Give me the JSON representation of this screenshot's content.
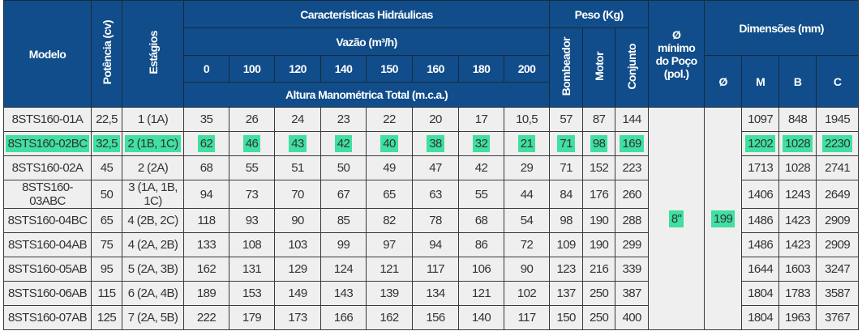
{
  "headers": {
    "modelo": "Modelo",
    "potencia": "Potência (cv)",
    "estagios": "Estágios",
    "hidraulicas": "Características Hidráulicas",
    "vazao": "Vazão (m³/h)",
    "flows": [
      "0",
      "100",
      "120",
      "140",
      "150",
      "160",
      "180",
      "200"
    ],
    "altura": "Altura Manométrica Total (m.c.a.)",
    "peso": "Peso (Kg)",
    "bombeador": "Bombeador",
    "motor": "Motor",
    "conjunto": "Conjunto",
    "poco": "Ø mínimo do Poço (pol.)",
    "dimensoes": "Dimensões (mm)",
    "dim_cols": [
      "Ø",
      "M",
      "B",
      "C"
    ]
  },
  "shared": {
    "poco_min": "8\"",
    "diametro": "199"
  },
  "highlight_color": "#3fe0a2",
  "rows": [
    {
      "modelo": "8STS160-01A",
      "potencia": "22,5",
      "estagios": "1 (1A)",
      "alturas": [
        "35",
        "26",
        "24",
        "23",
        "22",
        "20",
        "17",
        "10,5"
      ],
      "bombeador": "57",
      "motor": "87",
      "conjunto": "144",
      "M": "1097",
      "B": "848",
      "C": "1945",
      "highlight": false
    },
    {
      "modelo": "8STS160-02BC",
      "potencia": "32,5",
      "estagios": "2 (1B, 1C)",
      "alturas": [
        "62",
        "46",
        "43",
        "42",
        "40",
        "38",
        "32",
        "21"
      ],
      "bombeador": "71",
      "motor": "98",
      "conjunto": "169",
      "M": "1202",
      "B": "1028",
      "C": "2230",
      "highlight": true
    },
    {
      "modelo": "8STS160-02A",
      "potencia": "45",
      "estagios": "2 (2A)",
      "alturas": [
        "68",
        "55",
        "51",
        "50",
        "49",
        "47",
        "42",
        "29"
      ],
      "bombeador": "71",
      "motor": "152",
      "conjunto": "223",
      "M": "1713",
      "B": "1028",
      "C": "2741",
      "highlight": false
    },
    {
      "modelo": "8STS160-03ABC",
      "potencia": "50",
      "estagios": "3 (1A, 1B, 1C)",
      "alturas": [
        "94",
        "73",
        "70",
        "67",
        "65",
        "63",
        "55",
        "44"
      ],
      "bombeador": "84",
      "motor": "176",
      "conjunto": "260",
      "M": "1406",
      "B": "1243",
      "C": "2649",
      "highlight": false
    },
    {
      "modelo": "8STS160-04BC",
      "potencia": "65",
      "estagios": "4 (2B, 2C)",
      "alturas": [
        "118",
        "93",
        "90",
        "85",
        "82",
        "78",
        "68",
        "54"
      ],
      "bombeador": "98",
      "motor": "190",
      "conjunto": "288",
      "M": "1486",
      "B": "1423",
      "C": "2909",
      "highlight": false
    },
    {
      "modelo": "8STS160-04AB",
      "potencia": "75",
      "estagios": "4 (2A, 2B)",
      "alturas": [
        "133",
        "108",
        "103",
        "99",
        "97",
        "94",
        "86",
        "72"
      ],
      "bombeador": "109",
      "motor": "190",
      "conjunto": "299",
      "M": "1486",
      "B": "1423",
      "C": "2909",
      "highlight": false
    },
    {
      "modelo": "8STS160-05AB",
      "potencia": "95",
      "estagios": "5 (2A, 3B)",
      "alturas": [
        "162",
        "131",
        "129",
        "124",
        "121",
        "117",
        "106",
        "90"
      ],
      "bombeador": "123",
      "motor": "216",
      "conjunto": "339",
      "M": "1644",
      "B": "1603",
      "C": "3247",
      "highlight": false
    },
    {
      "modelo": "8STS160-06AB",
      "potencia": "115",
      "estagios": "6 (2A, 4B)",
      "alturas": [
        "189",
        "153",
        "149",
        "143",
        "139",
        "134",
        "121",
        "102"
      ],
      "bombeador": "137",
      "motor": "250",
      "conjunto": "387",
      "M": "1804",
      "B": "1783",
      "C": "3587",
      "highlight": false
    },
    {
      "modelo": "8STS160-07AB",
      "potencia": "125",
      "estagios": "7 (2A, 5B)",
      "alturas": [
        "222",
        "179",
        "173",
        "166",
        "162",
        "156",
        "140",
        "117"
      ],
      "bombeador": "150",
      "motor": "250",
      "conjunto": "400",
      "M": "1804",
      "B": "1963",
      "C": "3767",
      "highlight": false
    }
  ]
}
